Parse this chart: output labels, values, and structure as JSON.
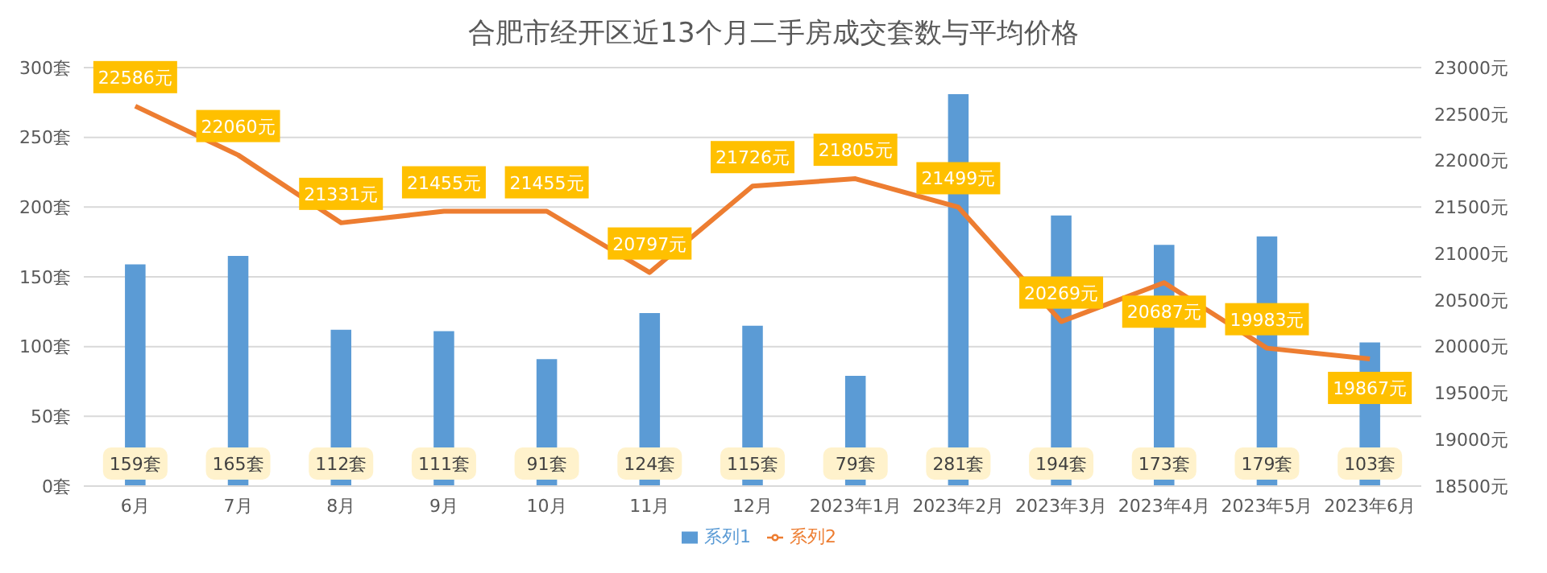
{
  "chart_data": {
    "type": "bar",
    "title": "合肥市经开区近13个月二手房成交套数与平均价格",
    "categories": [
      "6月",
      "7月",
      "8月",
      "9月",
      "10月",
      "11月",
      "12月",
      "2023年1月",
      "2023年2月",
      "2023年3月",
      "2023年4月",
      "2023年5月",
      "2023年6月"
    ],
    "series": [
      {
        "name": "系列1",
        "type": "bar",
        "color": "#5b9bd5",
        "values": [
          159,
          165,
          112,
          111,
          91,
          124,
          115,
          79,
          281,
          194,
          173,
          179,
          103
        ],
        "value_labels": [
          "159套",
          "165套",
          "112套",
          "111套",
          "91套",
          "124套",
          "115套",
          "79套",
          "281套",
          "194套",
          "173套",
          "179套",
          "103套"
        ]
      },
      {
        "name": "系列2",
        "type": "line",
        "axis": "y2",
        "color": "#ed7d31",
        "values": [
          22586,
          22060,
          21331,
          21455,
          21455,
          20797,
          21726,
          21805,
          21499,
          20269,
          20687,
          19983,
          19867
        ],
        "value_labels": [
          "22586元",
          "22060元",
          "21331元",
          "21455元",
          "21455元",
          "20797元",
          "21726元",
          "21805元",
          "21499元",
          "20269元",
          "20687元",
          "19983元",
          "19867元"
        ]
      }
    ],
    "ylim": [
      0,
      300
    ],
    "yticks": [
      {
        "value": 0,
        "label": "0套"
      },
      {
        "value": 50,
        "label": "50套"
      },
      {
        "value": 100,
        "label": "100套"
      },
      {
        "value": 150,
        "label": "150套"
      },
      {
        "value": 200,
        "label": "200套"
      },
      {
        "value": 250,
        "label": "250套"
      },
      {
        "value": 300,
        "label": "300套"
      }
    ],
    "y2lim": [
      18500,
      23000
    ],
    "y2ticks": [
      {
        "value": 18500,
        "label": "18500元"
      },
      {
        "value": 19000,
        "label": "19000元"
      },
      {
        "value": 19500,
        "label": "19500元"
      },
      {
        "value": 20000,
        "label": "20000元"
      },
      {
        "value": 20500,
        "label": "20500元"
      },
      {
        "value": 21000,
        "label": "21000元"
      },
      {
        "value": 21500,
        "label": "21500元"
      },
      {
        "value": 22000,
        "label": "22000元"
      },
      {
        "value": 22500,
        "label": "22500元"
      },
      {
        "value": 23000,
        "label": "23000元"
      }
    ],
    "grid": "y",
    "legend": "bottom",
    "marker": "none",
    "line_style": "solid"
  }
}
